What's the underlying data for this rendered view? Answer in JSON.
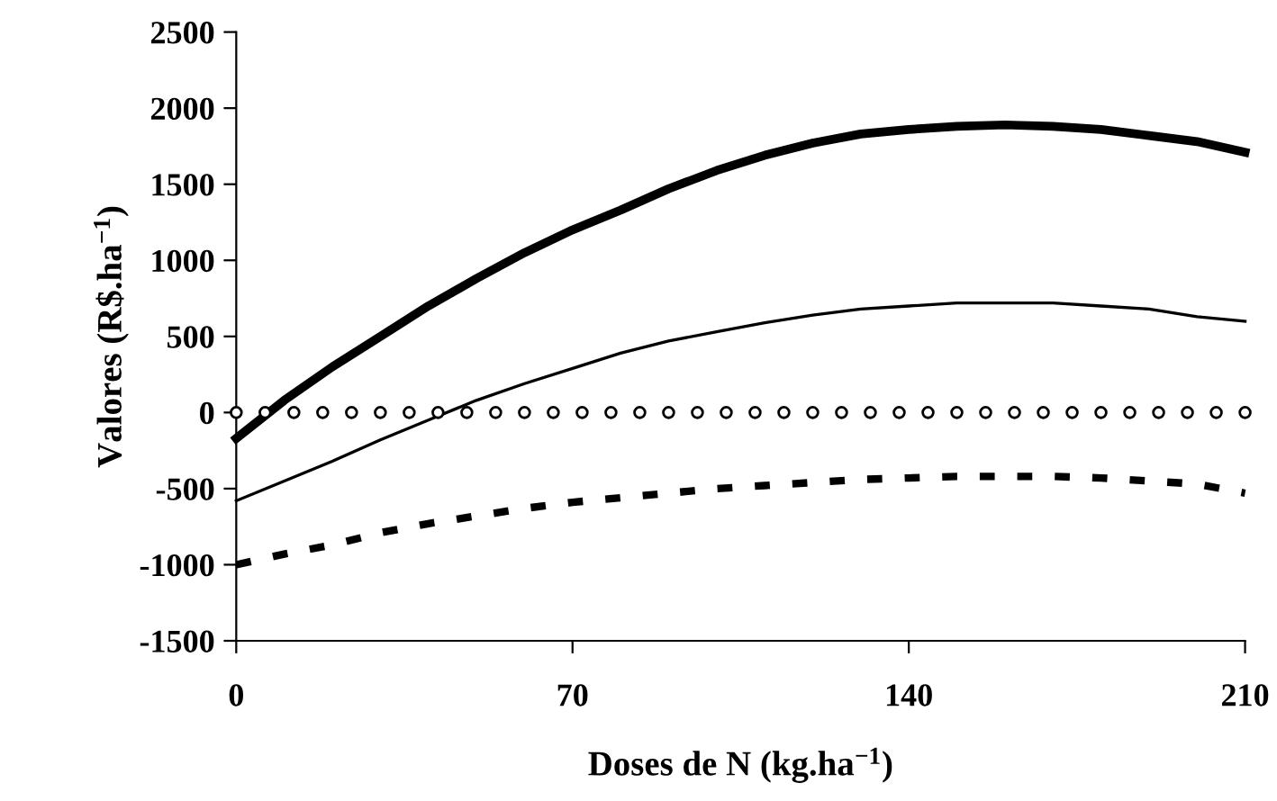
{
  "chart_data": {
    "type": "line",
    "xlabel": "Doses de N (kg.ha$^{−1}$)",
    "ylabel": "Valores (R$.ha$^{−1}$)",
    "xlim": [
      0,
      210
    ],
    "xticks": [
      0,
      70,
      140,
      210
    ],
    "ylim": [
      -1500,
      2500
    ],
    "yticks": [
      -1500,
      -1000,
      -500,
      0,
      500,
      1000,
      1500,
      2000,
      2500
    ],
    "grid": false,
    "legend": false,
    "series": [
      {
        "color": "#000000",
        "line_style": "solid",
        "marker": "none",
        "x": [
          0,
          10,
          20,
          30,
          40,
          50,
          60,
          70,
          80,
          90,
          100,
          110,
          120,
          130,
          140,
          150,
          160,
          170,
          180,
          190,
          200,
          210
        ],
        "values": [
          -170,
          80,
          300,
          500,
          700,
          880,
          1050,
          1200,
          1330,
          1470,
          1590,
          1690,
          1770,
          1830,
          1860,
          1880,
          1890,
          1880,
          1860,
          1820,
          1780,
          1710
        ]
      },
      {
        "color": "#000000",
        "line_style": "solid",
        "marker": "none",
        "x": [
          0,
          10,
          20,
          30,
          40,
          50,
          60,
          70,
          80,
          90,
          100,
          110,
          120,
          130,
          140,
          150,
          160,
          170,
          180,
          190,
          200,
          210
        ],
        "values": [
          -580,
          -450,
          -320,
          -180,
          -50,
          80,
          190,
          290,
          390,
          470,
          530,
          590,
          640,
          680,
          700,
          720,
          720,
          720,
          700,
          680,
          630,
          600
        ]
      },
      {
        "type": "scatter",
        "color": "#000000",
        "marker": "circle",
        "x": [
          0,
          6,
          12,
          18,
          24,
          30,
          36,
          42,
          48,
          54,
          60,
          66,
          72,
          78,
          84,
          90,
          96,
          102,
          108,
          114,
          120,
          126,
          132,
          138,
          144,
          150,
          156,
          162,
          168,
          174,
          180,
          186,
          192,
          198,
          204,
          210
        ],
        "values": [
          0,
          0,
          0,
          0,
          0,
          0,
          0,
          0,
          0,
          0,
          0,
          0,
          0,
          0,
          0,
          0,
          0,
          0,
          0,
          0,
          0,
          0,
          0,
          0,
          0,
          0,
          0,
          0,
          0,
          0,
          0,
          0,
          0,
          0,
          0,
          0
        ]
      },
      {
        "color": "#000000",
        "line_style": "dashed",
        "marker": "none",
        "x": [
          0,
          10,
          20,
          30,
          40,
          50,
          60,
          70,
          80,
          90,
          100,
          110,
          120,
          130,
          140,
          150,
          160,
          170,
          180,
          190,
          200,
          210
        ],
        "values": [
          -1000,
          -930,
          -870,
          -790,
          -730,
          -680,
          -630,
          -590,
          -560,
          -530,
          -500,
          -480,
          -460,
          -440,
          -430,
          -420,
          -420,
          -420,
          -430,
          -450,
          -470,
          -530
        ]
      }
    ]
  }
}
